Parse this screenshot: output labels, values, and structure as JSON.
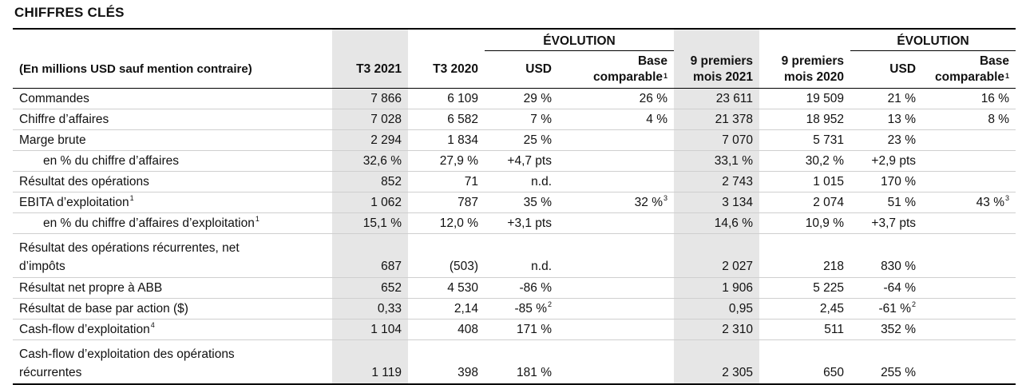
{
  "page": {
    "title": "CHIFFRES CLÉS"
  },
  "header": {
    "evolution_left": "ÉVOLUTION",
    "evolution_right": "ÉVOLUTION",
    "unit_note": "(En millions USD sauf mention contraire)",
    "q3_2021": "T3 2021",
    "q3_2020": "T3 2020",
    "usd_1": "USD",
    "base_1_line1": "Base",
    "base_1_line2": "comparable",
    "base_1_sup": "1",
    "nine_2021_line1": "9 premiers",
    "nine_2021_line2": "mois 2021",
    "nine_2020_line1": "9 premiers",
    "nine_2020_line2": "mois 2020",
    "usd_2": "USD",
    "base_2_line1": "Base",
    "base_2_line2": "comparable",
    "base_2_sup": "1"
  },
  "rows": [
    {
      "label": "Commandes",
      "label_sup": "",
      "q3_2021": "7 866",
      "q3_2020": "6 109",
      "usd": "29 %",
      "usd_sup": "",
      "comp": "26 %",
      "comp_sup": "",
      "m9_2021": "23 611",
      "m9_2020": "19 509",
      "usd2": "21 %",
      "usd2_sup": "",
      "comp2": "16 %",
      "comp2_sup": ""
    },
    {
      "label": "Chiffre d’affaires",
      "label_sup": "",
      "q3_2021": "7 028",
      "q3_2020": "6 582",
      "usd": "7 %",
      "usd_sup": "",
      "comp": "4 %",
      "comp_sup": "",
      "m9_2021": "21 378",
      "m9_2020": "18 952",
      "usd2": "13 %",
      "usd2_sup": "",
      "comp2": "8 %",
      "comp2_sup": ""
    },
    {
      "label": "Marge brute",
      "label_sup": "",
      "q3_2021": "2 294",
      "q3_2020": "1 834",
      "usd": "25 %",
      "usd_sup": "",
      "comp": "",
      "comp_sup": "",
      "m9_2021": "7 070",
      "m9_2020": "5 731",
      "usd2": "23 %",
      "usd2_sup": "",
      "comp2": "",
      "comp2_sup": ""
    },
    {
      "label": "en % du chiffre d’affaires",
      "label_sup": "",
      "q3_2021": "32,6 %",
      "q3_2020": "27,9 %",
      "usd": "+4,7 pts",
      "usd_sup": "",
      "comp": "",
      "comp_sup": "",
      "m9_2021": "33,1 %",
      "m9_2020": "30,2 %",
      "usd2": "+2,9 pts",
      "usd2_sup": "",
      "comp2": "",
      "comp2_sup": ""
    },
    {
      "label": "Résultat des opérations",
      "label_sup": "",
      "q3_2021": "852",
      "q3_2020": "71",
      "usd": "n.d.",
      "usd_sup": "",
      "comp": "",
      "comp_sup": "",
      "m9_2021": "2 743",
      "m9_2020": "1 015",
      "usd2": "170 %",
      "usd2_sup": "",
      "comp2": "",
      "comp2_sup": ""
    },
    {
      "label": "EBITA d’exploitation",
      "label_sup": "1",
      "q3_2021": "1 062",
      "q3_2020": "787",
      "usd": "35 %",
      "usd_sup": "",
      "comp": "32 %",
      "comp_sup": "3",
      "m9_2021": "3 134",
      "m9_2020": "2 074",
      "usd2": "51 %",
      "usd2_sup": "",
      "comp2": "43 %",
      "comp2_sup": "3"
    },
    {
      "label": "en % du chiffre d’affaires d’exploitation",
      "label_sup": "1",
      "q3_2021": "15,1 %",
      "q3_2020": "12,0 %",
      "usd": "+3,1 pts",
      "usd_sup": "",
      "comp": "",
      "comp_sup": "",
      "m9_2021": "14,6 %",
      "m9_2020": "10,9 %",
      "usd2": "+3,7 pts",
      "usd2_sup": "",
      "comp2": "",
      "comp2_sup": ""
    },
    {
      "label": "Résultat des opérations récurrentes, net",
      "label2": "d’impôts",
      "label_sup": "",
      "q3_2021": "687",
      "q3_2020": "(503)",
      "usd": "n.d.",
      "usd_sup": "",
      "comp": "",
      "comp_sup": "",
      "m9_2021": "2 027",
      "m9_2020": "218",
      "usd2": "830 %",
      "usd2_sup": "",
      "comp2": "",
      "comp2_sup": ""
    },
    {
      "label": "Résultat net propre à ABB",
      "label_sup": "",
      "q3_2021": "652",
      "q3_2020": "4 530",
      "usd": "-86 %",
      "usd_sup": "",
      "comp": "",
      "comp_sup": "",
      "m9_2021": "1 906",
      "m9_2020": "5 225",
      "usd2": "-64 %",
      "usd2_sup": "",
      "comp2": "",
      "comp2_sup": ""
    },
    {
      "label": "Résultat de base par action ($)",
      "label_sup": "",
      "q3_2021": "0,33",
      "q3_2020": "2,14",
      "usd": "-85 %",
      "usd_sup": "2",
      "comp": "",
      "comp_sup": "",
      "m9_2021": "0,95",
      "m9_2020": "2,45",
      "usd2": "-61 %",
      "usd2_sup": "2",
      "comp2": "",
      "comp2_sup": ""
    },
    {
      "label": "Cash-flow d’exploitation",
      "label_sup": "4",
      "q3_2021": "1 104",
      "q3_2020": "408",
      "usd": "171 %",
      "usd_sup": "",
      "comp": "",
      "comp_sup": "",
      "m9_2021": "2 310",
      "m9_2020": "511",
      "usd2": "352 %",
      "usd2_sup": "",
      "comp2": "",
      "comp2_sup": ""
    },
    {
      "label": "Cash-flow d’exploitation des opérations",
      "label2": "récurrentes",
      "label_sup": "",
      "q3_2021": "1 119",
      "q3_2020": "398",
      "usd": "181 %",
      "usd_sup": "",
      "comp": "",
      "comp_sup": "",
      "m9_2021": "2 305",
      "m9_2020": "650",
      "usd2": "255 %",
      "usd2_sup": "",
      "comp2": "",
      "comp2_sup": ""
    }
  ]
}
